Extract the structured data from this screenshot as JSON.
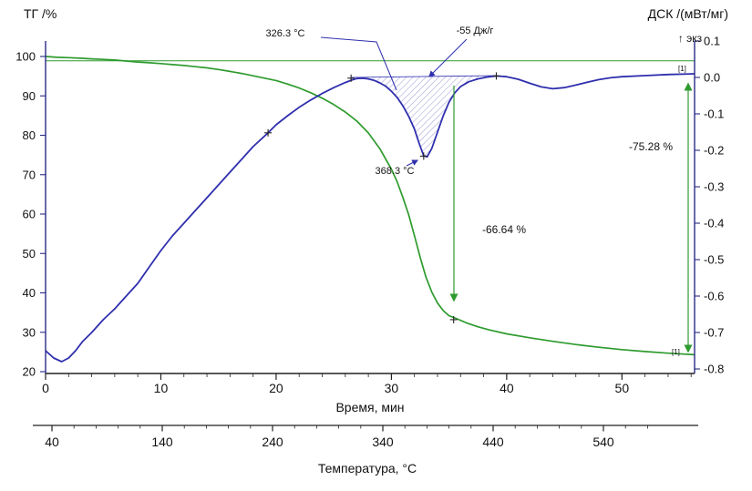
{
  "axes": {
    "left": {
      "title": "ТГ /%",
      "ticks": [
        20,
        30,
        40,
        50,
        60,
        70,
        80,
        90,
        100
      ]
    },
    "right": {
      "title": "ДСК /(мВт/мг)",
      "exo_label": "↑ экз",
      "ticks": [
        0.1,
        0.0,
        -0.1,
        -0.2,
        -0.3,
        -0.4,
        -0.5,
        -0.6,
        -0.7,
        -0.8
      ]
    },
    "time": {
      "title": "Время, мин",
      "ticks": [
        0,
        10,
        20,
        30,
        40,
        50
      ],
      "minor_step": 2,
      "max": 56.3
    },
    "temperature": {
      "title": "Температура, °C",
      "ticks": [
        40,
        140,
        240,
        340,
        440,
        540
      ],
      "minor_step": 20,
      "minor_max": 580
    }
  },
  "annotations": {
    "onset_temperature": "326.3 °C",
    "enthalpy": "-55 Дж/г",
    "peak_temperature": "368.3 °C",
    "mass_loss_step1": "-66.64 %",
    "mass_loss_total": "-75.28 %",
    "dsc_curve_tag": "[1]",
    "tg_curve_tag": "[1]"
  },
  "colors": {
    "tg": "#2e9b2e",
    "dsc": "#2f2fae",
    "axis_y": "#2a2a86",
    "axis_x": "#222222",
    "hatch": "#8080cc",
    "green_annot": "#2e9b2e",
    "marker": "#222222"
  },
  "chart_data": {
    "type": "line",
    "title": "",
    "x_axis": {
      "label": "Время, мин",
      "range": [
        0,
        56.3
      ]
    },
    "x2_axis": {
      "label": "Температура, °C",
      "range": [
        40,
        600
      ]
    },
    "left_y_axis": {
      "label": "ТГ /%",
      "range": [
        20,
        104
      ]
    },
    "right_y_axis": {
      "label": "ДСК /(мВт/мг)",
      "range": [
        -0.8125,
        0.1
      ],
      "exo_up": true
    },
    "grid": false,
    "series": [
      {
        "name": "ТГ",
        "axis": "left",
        "unit": "%",
        "color": "#2e9b2e",
        "points": [
          [
            0,
            100
          ],
          [
            1,
            99.8
          ],
          [
            2,
            99.7
          ],
          [
            3,
            99.55
          ],
          [
            4,
            99.4
          ],
          [
            5,
            99.25
          ],
          [
            6,
            99.1
          ],
          [
            7,
            98.85
          ],
          [
            8,
            98.6
          ],
          [
            9,
            98.4
          ],
          [
            10,
            98.2
          ],
          [
            11,
            97.95
          ],
          [
            12,
            97.7
          ],
          [
            13,
            97.4
          ],
          [
            14,
            97.1
          ],
          [
            15,
            96.7
          ],
          [
            16,
            96.2
          ],
          [
            17,
            95.7
          ],
          [
            18,
            95.1
          ],
          [
            19,
            94.5
          ],
          [
            20,
            93.9
          ],
          [
            21,
            93
          ],
          [
            22,
            92
          ],
          [
            23,
            90.8
          ],
          [
            24,
            89.4
          ],
          [
            25,
            87.8
          ],
          [
            26,
            85.9
          ],
          [
            27,
            83.6
          ],
          [
            28,
            80.6
          ],
          [
            29,
            76.6
          ],
          [
            30,
            71.4
          ],
          [
            30.5,
            68.2
          ],
          [
            31,
            64.2
          ],
          [
            31.5,
            59.8
          ],
          [
            32,
            54.5
          ],
          [
            32.5,
            49
          ],
          [
            33,
            44
          ],
          [
            33.5,
            40.2
          ],
          [
            34,
            37.4
          ],
          [
            34.5,
            35.5
          ],
          [
            35,
            34.2
          ],
          [
            35.8,
            33.3
          ],
          [
            36.5,
            32.4
          ],
          [
            37.5,
            31.4
          ],
          [
            38.5,
            30.6
          ],
          [
            40,
            29.6
          ],
          [
            42,
            28.6
          ],
          [
            44,
            27.7
          ],
          [
            46,
            26.9
          ],
          [
            48,
            26.2
          ],
          [
            50,
            25.6
          ],
          [
            52,
            25.1
          ],
          [
            54,
            24.7
          ],
          [
            56.3,
            24.3
          ]
        ]
      },
      {
        "name": "ДСК",
        "axis": "right",
        "unit": "мВт/мг",
        "color": "#2f2fae",
        "points": [
          [
            0,
            -0.75
          ],
          [
            0.7,
            -0.77
          ],
          [
            1.4,
            -0.78
          ],
          [
            2,
            -0.77
          ],
          [
            2.6,
            -0.75
          ],
          [
            3.2,
            -0.725
          ],
          [
            4,
            -0.7
          ],
          [
            5,
            -0.665
          ],
          [
            6,
            -0.635
          ],
          [
            7,
            -0.6
          ],
          [
            8,
            -0.565
          ],
          [
            9,
            -0.52
          ],
          [
            10,
            -0.475
          ],
          [
            11,
            -0.435
          ],
          [
            12,
            -0.4
          ],
          [
            13,
            -0.365
          ],
          [
            14,
            -0.33
          ],
          [
            15,
            -0.295
          ],
          [
            16,
            -0.26
          ],
          [
            17,
            -0.225
          ],
          [
            18,
            -0.19
          ],
          [
            19.3,
            -0.152
          ],
          [
            20,
            -0.13
          ],
          [
            21,
            -0.105
          ],
          [
            22,
            -0.082
          ],
          [
            23,
            -0.062
          ],
          [
            24,
            -0.044
          ],
          [
            25,
            -0.028
          ],
          [
            26,
            -0.014
          ],
          [
            26.5,
            -0.008
          ],
          [
            27,
            -0.003
          ],
          [
            27.5,
            -0.002
          ],
          [
            28,
            -0.004
          ],
          [
            28.5,
            -0.008
          ],
          [
            29,
            -0.015
          ],
          [
            29.5,
            -0.024
          ],
          [
            30,
            -0.038
          ],
          [
            30.5,
            -0.055
          ],
          [
            31,
            -0.078
          ],
          [
            31.5,
            -0.107
          ],
          [
            32,
            -0.142
          ],
          [
            32.4,
            -0.18
          ],
          [
            32.8,
            -0.215
          ],
          [
            33.1,
            -0.218
          ],
          [
            33.5,
            -0.195
          ],
          [
            34,
            -0.15
          ],
          [
            34.5,
            -0.105
          ],
          [
            35,
            -0.068
          ],
          [
            35.5,
            -0.042
          ],
          [
            36,
            -0.025
          ],
          [
            36.7,
            -0.012
          ],
          [
            37.5,
            -0.004
          ],
          [
            38.3,
            0.001
          ],
          [
            39.1,
            0.004
          ],
          [
            40,
            0.002
          ],
          [
            41,
            -0.005
          ],
          [
            42,
            -0.016
          ],
          [
            43,
            -0.026
          ],
          [
            44,
            -0.031
          ],
          [
            45,
            -0.028
          ],
          [
            46,
            -0.021
          ],
          [
            47,
            -0.013
          ],
          [
            48,
            -0.006
          ],
          [
            49,
            -0.001
          ],
          [
            50,
            0.002
          ],
          [
            52,
            0.005
          ],
          [
            54,
            0.008
          ],
          [
            56.3,
            0.01
          ]
        ]
      }
    ],
    "peak": {
      "baseline": [
        [
          26.5,
          0.0
        ],
        [
          39.1,
          0.005
        ]
      ],
      "dsc_markers": [
        [
          19.3,
          -0.152
        ],
        [
          26.5,
          -0.002
        ],
        [
          32.8,
          -0.216
        ],
        [
          39.1,
          0.004
        ]
      ],
      "tg_marker": [
        35.4,
        33.2
      ],
      "onset_temperature_c": 326.3,
      "peak_temperature_c": 368.3,
      "enthalpy_j_per_g": -55
    },
    "mass_loss": [
      {
        "value_percent": -66.64,
        "at_time_min": 35.4
      },
      {
        "value_percent": -75.28,
        "at_time_min": 55.7
      }
    ],
    "reference_line_tg_percent": 98.9
  }
}
